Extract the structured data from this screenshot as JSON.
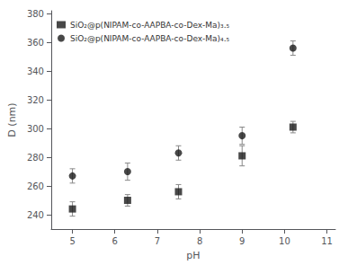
{
  "chart_data": {
    "type": "scatter",
    "x_label": "pH",
    "y_label": "D (nm)",
    "x": [
      5.0,
      6.3,
      7.5,
      9.0,
      10.2
    ],
    "series": [
      {
        "name": "SiO₂@p(NIPAM-co-AAPBA-co-Dex-Ma)₃.₅",
        "color": "#1a1a1a",
        "marker": "square",
        "values": [
          244,
          250,
          256,
          281,
          301
        ],
        "yerr": [
          5,
          4,
          5,
          7,
          4
        ]
      },
      {
        "name": "SiO₂@p(NIPAM-co-AAPBA-co-Dex-Ma)₄.₅",
        "color": "#1a1a1a",
        "marker": "circle",
        "values": [
          267,
          270,
          283,
          295,
          356
        ],
        "yerr": [
          5,
          6,
          5,
          6,
          5
        ]
      }
    ],
    "xlim": [
      4.5,
      11.2
    ],
    "ylim": [
      230,
      382
    ],
    "xticks": [
      5,
      6,
      7,
      8,
      9,
      10,
      11
    ],
    "yticks": [
      240,
      260,
      280,
      300,
      320,
      340,
      360,
      380
    ],
    "grid": false,
    "legend": "upper left"
  }
}
